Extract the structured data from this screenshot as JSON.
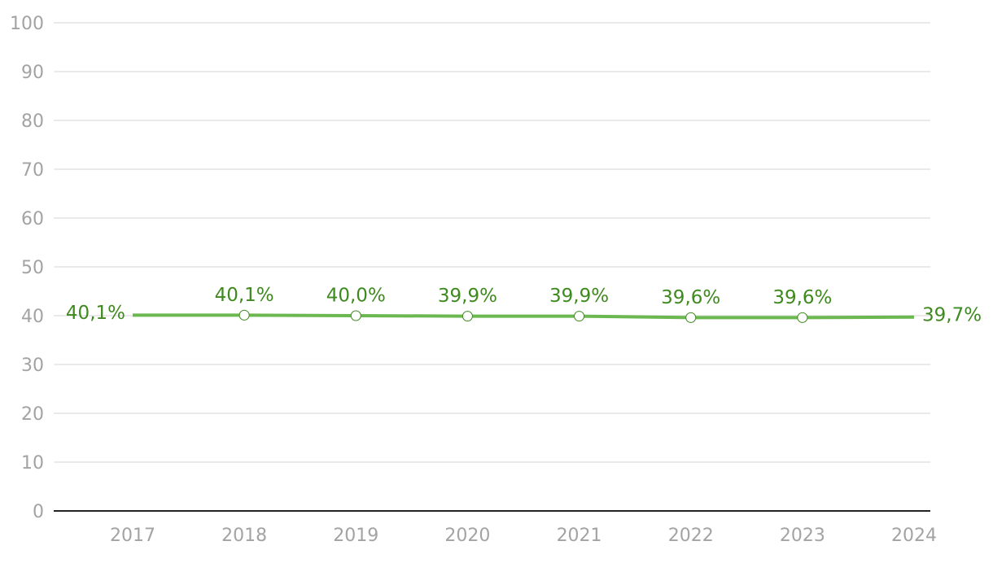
{
  "chart_data": {
    "type": "line",
    "categories": [
      "2017",
      "2018",
      "2019",
      "2020",
      "2021",
      "2022",
      "2023",
      "2024"
    ],
    "series": [
      {
        "color": "#6ab84f",
        "label_color": "#3f8a1f",
        "values": [
          40.1,
          40.1,
          40.0,
          39.9,
          39.9,
          39.6,
          39.6,
          39.7
        ],
        "value_labels": [
          "40,1%",
          "40,1%",
          "40,0%",
          "39,9%",
          "39,9%",
          "39,6%",
          "39,6%",
          "39,7%"
        ]
      }
    ],
    "ylim": [
      0,
      100
    ],
    "yticks": [
      0,
      10,
      20,
      30,
      40,
      50,
      60,
      70,
      80,
      90,
      100
    ],
    "grid": true
  }
}
